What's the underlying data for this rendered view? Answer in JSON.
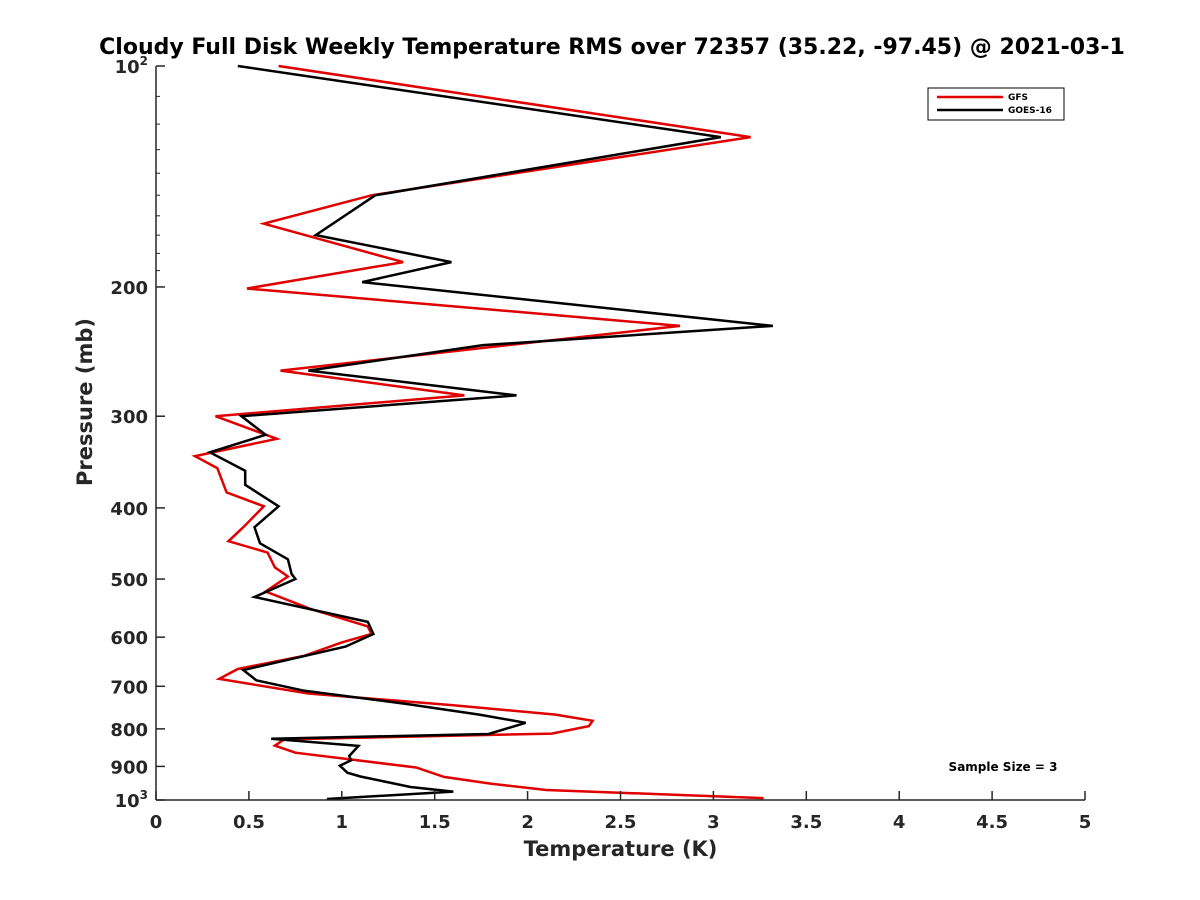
{
  "chart_data": {
    "type": "line",
    "title": "Cloudy Full Disk Weekly Temperature RMS over 72357 (35.22, -97.45) @ 2021-03-1",
    "xlabel": "Temperature (K)",
    "ylabel": "Pressure (mb)",
    "xlim": [
      0,
      5
    ],
    "ylim": [
      1000,
      100
    ],
    "y_scale": "log",
    "y_reversed": true,
    "x_ticks": [
      "0",
      "0.5",
      "1",
      "1.5",
      "2",
      "2.5",
      "3",
      "3.5",
      "4",
      "4.5",
      "5"
    ],
    "y_ticks": [
      {
        "value": 100,
        "base": "10",
        "exp": "2"
      },
      {
        "value": 200,
        "label": "200"
      },
      {
        "value": 300,
        "label": "300"
      },
      {
        "value": 400,
        "label": "400"
      },
      {
        "value": 500,
        "label": "500"
      },
      {
        "value": 600,
        "label": "600"
      },
      {
        "value": 700,
        "label": "700"
      },
      {
        "value": 800,
        "label": "800"
      },
      {
        "value": 900,
        "label": "900"
      },
      {
        "value": 1000,
        "base": "10",
        "exp": "3"
      }
    ],
    "grid": false,
    "legend_position": "top-right",
    "annotation": "Sample Size = 3",
    "series": [
      {
        "name": "GFS",
        "color": "#e00000",
        "points": [
          [
            0.66,
            100
          ],
          [
            3.2,
            125
          ],
          [
            1.16,
            150
          ],
          [
            0.58,
            164
          ],
          [
            1.33,
            185
          ],
          [
            0.49,
            201
          ],
          [
            2.82,
            226
          ],
          [
            0.67,
            260
          ],
          [
            1.66,
            281
          ],
          [
            0.32,
            300
          ],
          [
            0.65,
            322
          ],
          [
            0.21,
            340
          ],
          [
            0.33,
            353
          ],
          [
            0.38,
            381
          ],
          [
            0.58,
            398
          ],
          [
            0.47,
            425
          ],
          [
            0.39,
            444
          ],
          [
            0.6,
            460
          ],
          [
            0.64,
            482
          ],
          [
            0.71,
            496
          ],
          [
            0.59,
            520
          ],
          [
            0.83,
            549
          ],
          [
            1.14,
            580
          ],
          [
            1.16,
            594
          ],
          [
            1.0,
            610
          ],
          [
            0.8,
            636
          ],
          [
            0.44,
            663
          ],
          [
            0.34,
            684
          ],
          [
            0.82,
            716
          ],
          [
            1.6,
            743
          ],
          [
            2.15,
            765
          ],
          [
            2.35,
            780
          ],
          [
            2.33,
            793
          ],
          [
            2.13,
            812
          ],
          [
            0.69,
            827
          ],
          [
            0.64,
            843
          ],
          [
            0.75,
            862
          ],
          [
            1.4,
            903
          ],
          [
            1.55,
            930
          ],
          [
            1.8,
            950
          ],
          [
            2.1,
            969
          ],
          [
            3.27,
            994
          ]
        ]
      },
      {
        "name": "GOES-16",
        "color": "#000000",
        "points": [
          [
            0.44,
            100
          ],
          [
            3.04,
            125
          ],
          [
            1.18,
            150
          ],
          [
            0.86,
            170
          ],
          [
            1.59,
            185
          ],
          [
            1.11,
            197
          ],
          [
            3.32,
            226
          ],
          [
            1.76,
            240
          ],
          [
            0.82,
            260
          ],
          [
            1.94,
            281
          ],
          [
            0.46,
            300
          ],
          [
            0.59,
            318
          ],
          [
            0.29,
            336
          ],
          [
            0.48,
            356
          ],
          [
            0.48,
            372
          ],
          [
            0.66,
            398
          ],
          [
            0.53,
            425
          ],
          [
            0.56,
            447
          ],
          [
            0.71,
            470
          ],
          [
            0.73,
            492
          ],
          [
            0.75,
            500
          ],
          [
            0.53,
            529
          ],
          [
            1.14,
            572
          ],
          [
            1.17,
            594
          ],
          [
            1.02,
            618
          ],
          [
            0.47,
            665
          ],
          [
            0.54,
            687
          ],
          [
            0.8,
            710
          ],
          [
            1.35,
            740
          ],
          [
            1.74,
            765
          ],
          [
            1.99,
            785
          ],
          [
            1.79,
            813
          ],
          [
            0.62,
            825
          ],
          [
            1.09,
            844
          ],
          [
            1.04,
            871
          ],
          [
            1.05,
            883
          ],
          [
            0.99,
            898
          ],
          [
            1.03,
            918
          ],
          [
            1.1,
            929
          ],
          [
            1.37,
            960
          ],
          [
            1.6,
            974
          ],
          [
            0.92,
            997
          ]
        ]
      }
    ]
  }
}
